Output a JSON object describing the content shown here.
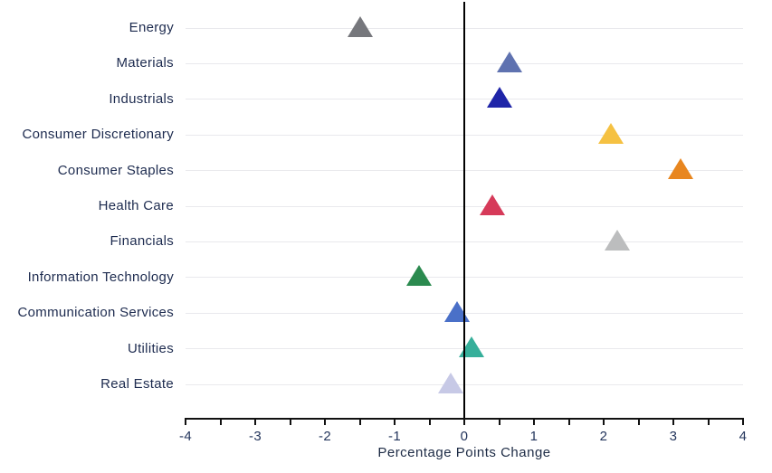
{
  "chart_data": {
    "type": "scatter",
    "marker_shape": "triangle-up",
    "title": "",
    "xlabel": "Percentage Points Change",
    "ylabel": "",
    "xlim": [
      -4,
      4
    ],
    "x_ticks": [
      "-4",
      "-3",
      "-2",
      "-1",
      "0",
      "1",
      "2",
      "3",
      "4"
    ],
    "x_tick_values": [
      -4,
      -3,
      -2,
      -1,
      0,
      1,
      2,
      3,
      4
    ],
    "minor_tick_step": 0.5,
    "grid": "horizontal-per-category",
    "zero_line": true,
    "legend": "none",
    "points": [
      {
        "category": "Energy",
        "value": -1.5,
        "color": "#76777c"
      },
      {
        "category": "Materials",
        "value": 0.65,
        "color": "#5f72b0"
      },
      {
        "category": "Industrials",
        "value": 0.5,
        "color": "#1f25a8"
      },
      {
        "category": "Consumer Discretionary",
        "value": 2.1,
        "color": "#f5c142"
      },
      {
        "category": "Consumer Staples",
        "value": 3.1,
        "color": "#e8861f"
      },
      {
        "category": "Health Care",
        "value": 0.4,
        "color": "#d63a59"
      },
      {
        "category": "Financials",
        "value": 2.2,
        "color": "#bcbdbe"
      },
      {
        "category": "Information Technology",
        "value": -0.65,
        "color": "#2b8a4f"
      },
      {
        "category": "Communication Services",
        "value": -0.1,
        "color": "#4a70c8"
      },
      {
        "category": "Utilities",
        "value": 0.1,
        "color": "#36af9a"
      },
      {
        "category": "Real Estate",
        "value": -0.2,
        "color": "#c7c9e6"
      }
    ],
    "colors": {
      "background": "#ffffff",
      "gridline": "#e9e9ed",
      "axis": "#111111",
      "zero_line": "#000000",
      "category_label": "#1d2b4f",
      "tick_label": "#23355c",
      "axis_title": "#1d2b45"
    }
  }
}
